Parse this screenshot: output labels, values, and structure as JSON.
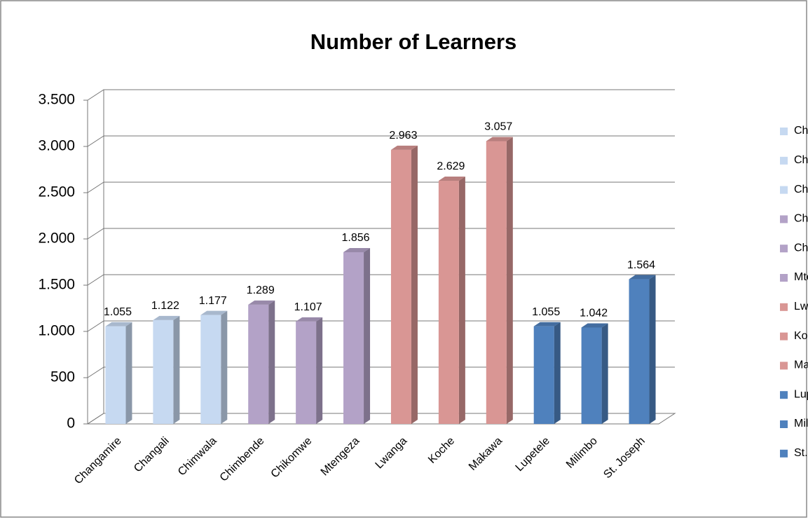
{
  "chart_data": {
    "type": "bar3d",
    "title": "Number of  Learners",
    "categories": [
      "Changamire",
      "Changali",
      "Chimwala",
      "Chimbende",
      "Chikomwe",
      "Mtengeza",
      "Lwanga",
      "Koche",
      "Makawa",
      "Lupetele",
      "Milimbo",
      "St. Joseph"
    ],
    "values": [
      1055,
      1122,
      1177,
      1289,
      1107,
      1856,
      2963,
      2629,
      3057,
      1055,
      1042,
      1564
    ],
    "value_labels": [
      "1.055",
      "1.122",
      "1.177",
      "1.289",
      "1.107",
      "1.856",
      "2.963",
      "2.629",
      "3.057",
      "1.055",
      "1.042",
      "1.564"
    ],
    "colors": [
      "#c6d9f1",
      "#c6d9f1",
      "#c6d9f1",
      "#b3a2c7",
      "#b3a2c7",
      "#b3a2c7",
      "#d99694",
      "#d99694",
      "#d99694",
      "#4f81bd",
      "#4f81bd",
      "#4f81bd"
    ],
    "ylim": [
      0,
      3500
    ],
    "yticks": [
      0,
      500,
      {
        "value": 1000,
        "label": "1.000"
      },
      {
        "value": 1500,
        "label": "1.500"
      },
      {
        "value": 2000,
        "label": "2.000"
      },
      {
        "value": 2500,
        "label": "2.500"
      },
      {
        "value": 3000,
        "label": "3.000"
      },
      {
        "value": 3500,
        "label": "3.500"
      }
    ],
    "grid": true,
    "legend": "right"
  }
}
